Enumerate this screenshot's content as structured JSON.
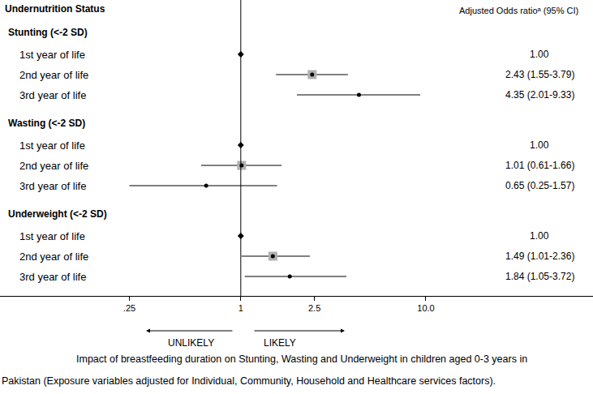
{
  "chart_data": {
    "type": "forest",
    "title": "Undernutrition Status",
    "value_title": "Adjusted Odds ratioᵃ (95% CI)",
    "log": "x",
    "xlim": [
      0.05,
      80
    ],
    "xticks": [
      {
        "value": 0.25,
        "label": ".25"
      },
      1,
      2.5,
      {
        "value": 10,
        "label": "10.0"
      }
    ],
    "groups": [
      {
        "name": "Stunting (<-2 SD)",
        "categories": [
          "1st year of life",
          "2nd year of life",
          "3rd year of life"
        ],
        "values": [
          1.0,
          2.43,
          4.35
        ],
        "lower": [
          null,
          1.55,
          2.01
        ],
        "upper": [
          null,
          3.79,
          9.33
        ],
        "value_labels": [
          "1.00",
          "2.43 (1.55-3.79)",
          "4.35 (2.01-9.33)"
        ]
      },
      {
        "name": "Wasting (<-2 SD)",
        "categories": [
          "1st year of life",
          "2nd year of life",
          "3rd year of life"
        ],
        "values": [
          1.0,
          1.01,
          0.65
        ],
        "lower": [
          null,
          0.61,
          0.25
        ],
        "upper": [
          null,
          1.66,
          1.57
        ],
        "value_labels": [
          "1.00",
          "1.01 (0.61-1.66)",
          "0.65 (0.25-1.57)"
        ]
      },
      {
        "name": "Underweight (<-2 SD)",
        "categories": [
          "1st year of life",
          "2nd year of life",
          "3rd year of life"
        ],
        "values": [
          1.0,
          1.49,
          1.84
        ],
        "lower": [
          null,
          1.01,
          1.05
        ],
        "upper": [
          null,
          2.36,
          3.72
        ],
        "value_labels": [
          "1.00",
          "1.49 (1.01-2.36)",
          "1.84 (1.05-3.72)"
        ]
      }
    ],
    "annotations": [
      "UNLIKELY",
      "LIKELY"
    ],
    "caption": [
      "Impact of breastfeeding duration on Stunting, Wasting and Underweight in children aged 0-3 years in",
      "Pakistan (Exposure variables adjusted for Individual, Community, Household and Healthcare services factors)."
    ]
  }
}
